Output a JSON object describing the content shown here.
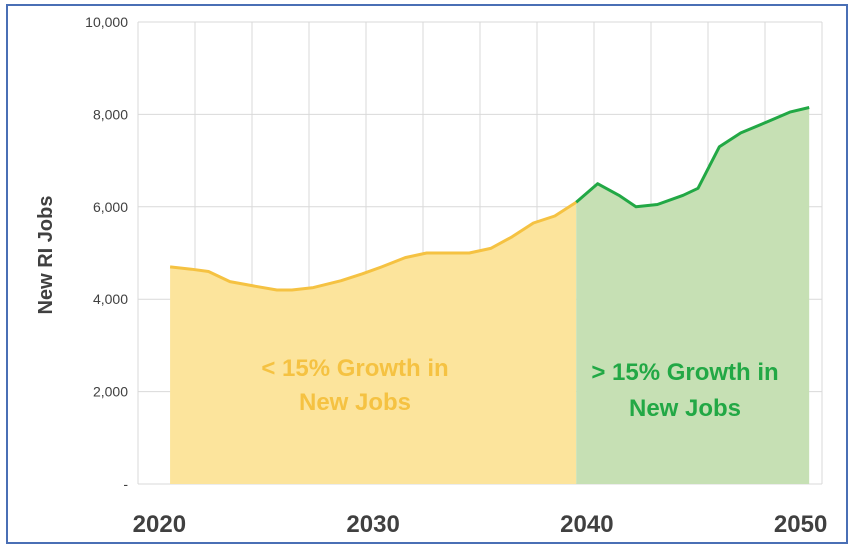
{
  "chart_data": {
    "type": "area",
    "title": "",
    "xlabel": "",
    "ylabel": "New RI Jobs",
    "xlim": [
      2019,
      2051
    ],
    "ylim": [
      0,
      10000
    ],
    "x_ticks": [
      "2020",
      "2030",
      "2040",
      "2050"
    ],
    "y_ticks": [
      "-",
      "2,000",
      "4,000",
      "6,000",
      "8,000",
      "10,000"
    ],
    "grid": true,
    "series": [
      {
        "name": "< 15% Growth in New Jobs",
        "color": "#f5c242",
        "fill": "#fce49c",
        "x": [
          2020.5,
          2021.5,
          2022.3,
          2023.3,
          2024.5,
          2025.5,
          2026.2,
          2027.2,
          2028.5,
          2029.5,
          2030.4,
          2031.5,
          2032.5,
          2033.5,
          2034.5,
          2035.5,
          2036.5,
          2037.5,
          2038.5,
          2039.5
        ],
        "values": [
          4700,
          4650,
          4600,
          4380,
          4280,
          4200,
          4200,
          4250,
          4400,
          4550,
          4700,
          4900,
          5000,
          5000,
          5000,
          5100,
          5350,
          5650,
          5800,
          6100
        ]
      },
      {
        "name": "> 15% Growth in New Jobs",
        "color": "#22a845",
        "fill": "#c6e0b4",
        "x": [
          2039.5,
          2040.5,
          2041.5,
          2042.3,
          2043.3,
          2044.5,
          2045.2,
          2046.2,
          2047.2,
          2048.5,
          2049.5,
          2050.4
        ],
        "values": [
          6100,
          6500,
          6250,
          6000,
          6050,
          6250,
          6400,
          7300,
          7600,
          7850,
          8050,
          8150
        ]
      }
    ],
    "annotations": [
      {
        "line1": "< 15% Growth in",
        "line2": "New Jobs",
        "color": "#f5c242"
      },
      {
        "line1": "> 15% Growth in",
        "line2": "New Jobs",
        "color": "#22a845"
      }
    ]
  }
}
